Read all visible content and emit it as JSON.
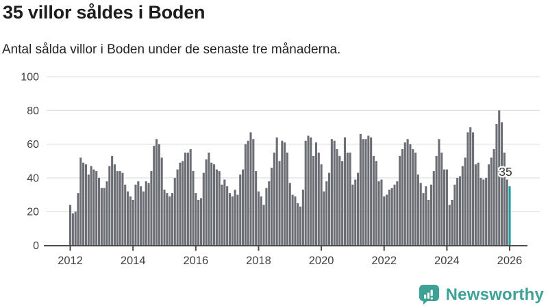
{
  "chart_data": {
    "type": "bar",
    "title": "35 villor såldes i Boden",
    "subtitle": "Antal sålda villor i Boden under de senaste tre månaderna.",
    "frequency": "monthly",
    "x_start": "2012",
    "x_axis": {
      "tick_years": [
        2012,
        2014,
        2016,
        2018,
        2020,
        2022,
        2024,
        2026
      ]
    },
    "y_axis": {
      "ticks": [
        0,
        20,
        40,
        60,
        80,
        100
      ],
      "min": 0,
      "max": 100,
      "grid": true
    },
    "values": [
      24,
      19,
      20,
      31,
      52,
      49,
      48,
      42,
      47,
      45,
      44,
      40,
      34,
      34,
      38,
      47,
      53,
      48,
      44,
      44,
      43,
      36,
      32,
      29,
      27,
      36,
      38,
      35,
      32,
      38,
      37,
      44,
      59,
      63,
      60,
      52,
      33,
      31,
      29,
      31,
      40,
      45,
      49,
      50,
      55,
      55,
      57,
      44,
      31,
      27,
      28,
      43,
      51,
      55,
      49,
      48,
      45,
      44,
      36,
      39,
      35,
      31,
      29,
      33,
      30,
      42,
      45,
      60,
      62,
      67,
      63,
      44,
      32,
      29,
      24,
      34,
      38,
      46,
      55,
      64,
      50,
      62,
      61,
      55,
      37,
      30,
      29,
      25,
      23,
      33,
      62,
      65,
      64,
      53,
      61,
      55,
      48,
      32,
      38,
      43,
      63,
      62,
      57,
      53,
      50,
      64,
      55,
      55,
      36,
      39,
      43,
      66,
      63,
      63,
      65,
      64,
      53,
      50,
      38,
      39,
      29,
      30,
      33,
      34,
      36,
      38,
      53,
      57,
      61,
      63,
      60,
      57,
      55,
      42,
      37,
      31,
      35,
      27,
      36,
      44,
      53,
      63,
      55,
      45,
      45,
      24,
      27,
      36,
      40,
      41,
      47,
      52,
      67,
      70,
      67,
      48,
      49,
      40,
      39,
      40,
      48,
      52,
      57,
      72,
      80,
      73,
      55,
      39,
      35
    ],
    "highlight": {
      "index": 168,
      "value": 35,
      "label": "35"
    },
    "colors": {
      "bar": "#6b6e75",
      "highlight": "#1a9e9e",
      "grid": "#e1e1e1",
      "axis": "#4c4c4c",
      "tick_label": "#3f3f3f",
      "annotation_text": "#333333"
    }
  },
  "footer": {
    "brand": "Newsworthy",
    "brand_color": "#3da295"
  }
}
